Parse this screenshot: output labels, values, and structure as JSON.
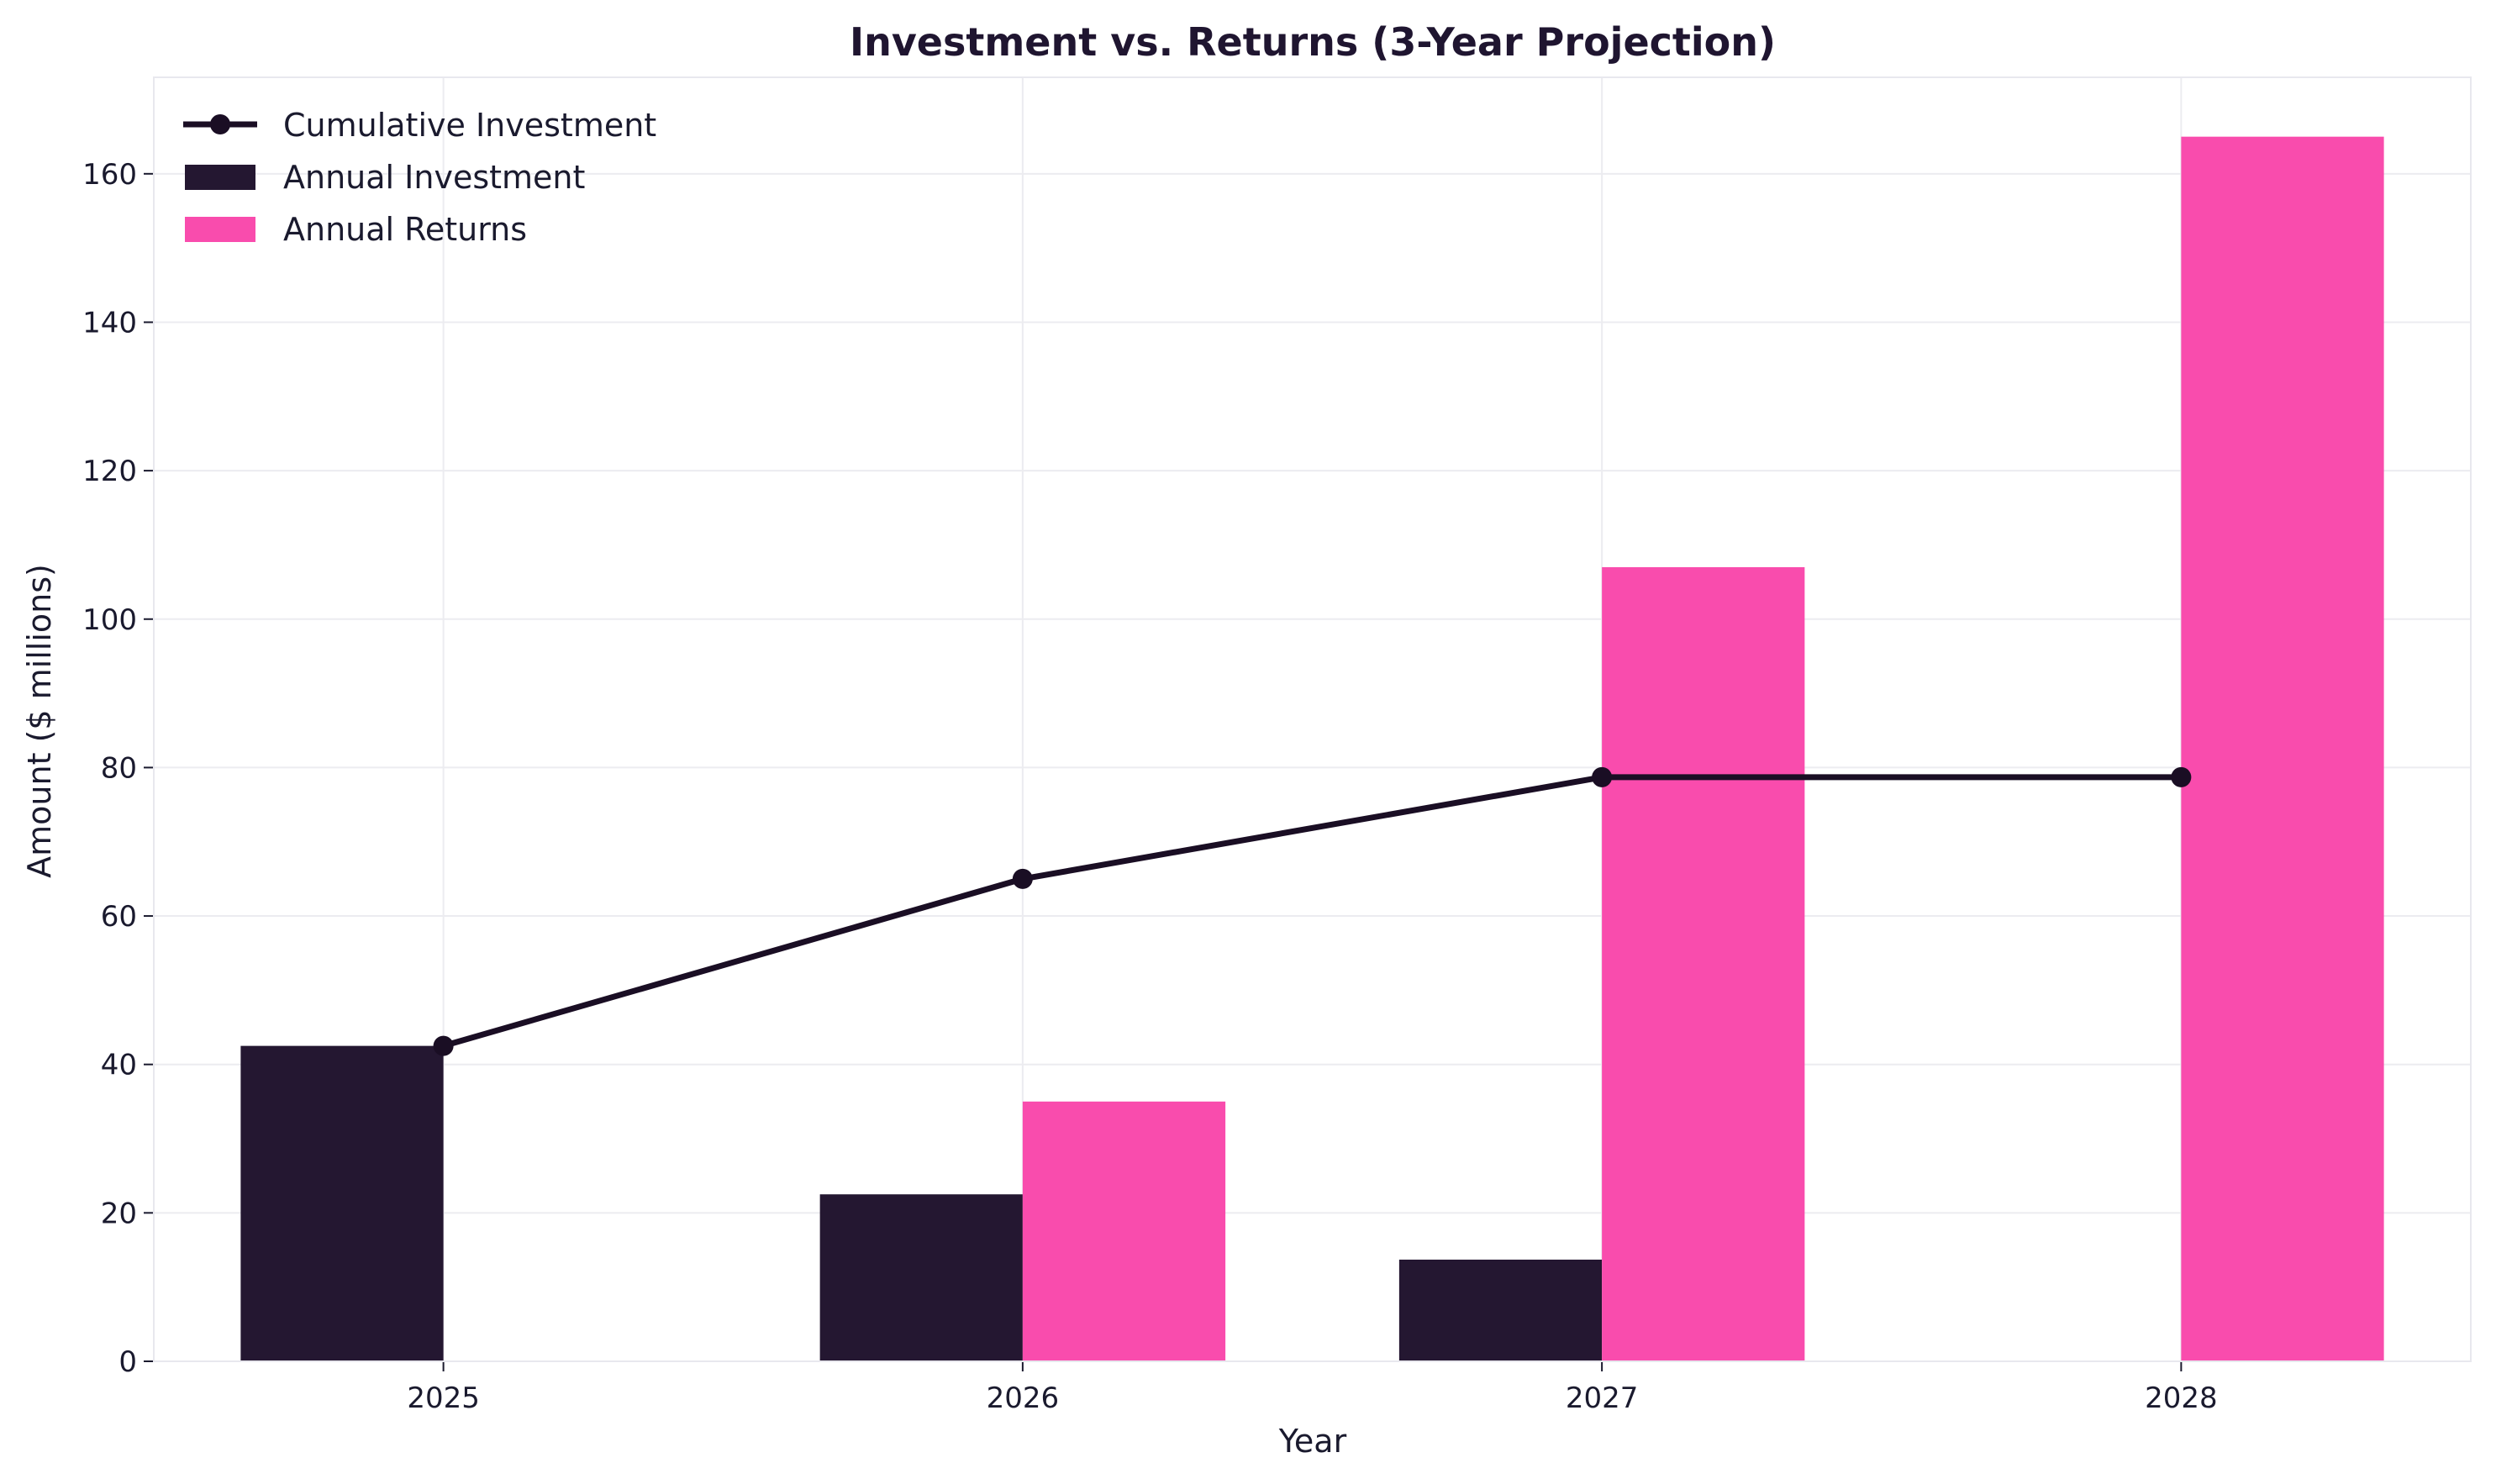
{
  "chart_data": {
    "type": "bar",
    "title": "Investment vs. Returns (3-Year Projection)",
    "xlabel": "Year",
    "ylabel": "Amount ($ millions)",
    "categories": [
      "2025",
      "2026",
      "2027",
      "2028"
    ],
    "ylim": [
      0,
      173
    ],
    "yticks": [
      0,
      20,
      40,
      60,
      80,
      100,
      120,
      140,
      160
    ],
    "grid": true,
    "legend_position": "top-left",
    "series": [
      {
        "name": "Annual Investment",
        "kind": "bar",
        "color": "#241731",
        "values": [
          42.5,
          22.5,
          13.7,
          0
        ]
      },
      {
        "name": "Annual Returns",
        "kind": "bar",
        "color": "#f94cad",
        "values": [
          0,
          35.0,
          107.0,
          165.0
        ]
      },
      {
        "name": "Cumulative Investment",
        "kind": "line",
        "color": "#1a0e24",
        "values": [
          42.5,
          65.0,
          78.7,
          78.7
        ]
      }
    ]
  }
}
